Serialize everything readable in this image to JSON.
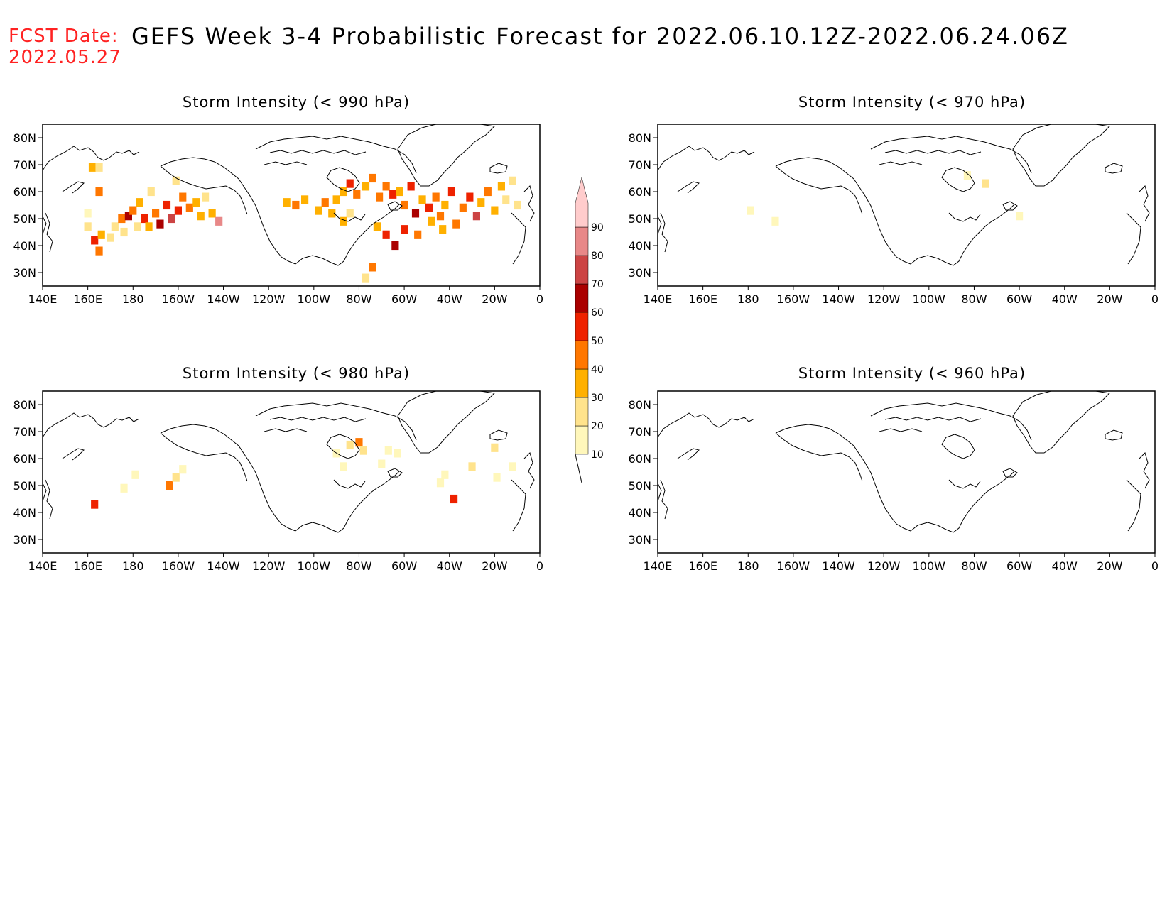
{
  "header": {
    "fcst_label": "FCST Date:",
    "fcst_date": "2022.05.27",
    "title": "GEFS Week 3-4 Probabilistic Forecast for 2022.06.10.12Z-2022.06.24.06Z"
  },
  "panels": [
    {
      "id": "p990",
      "title": "Storm Intensity (< 990 hPa)"
    },
    {
      "id": "p970",
      "title": "Storm Intensity (< 970 hPa)"
    },
    {
      "id": "p980",
      "title": "Storm Intensity (< 980 hPa)"
    },
    {
      "id": "p960",
      "title": "Storm Intensity (< 960 hPa)"
    }
  ],
  "map_axes": {
    "lon_labels": [
      "140E",
      "160E",
      "180",
      "160W",
      "140W",
      "120W",
      "100W",
      "80W",
      "60W",
      "40W",
      "20W",
      "0"
    ],
    "lon_values": [
      140,
      160,
      180,
      200,
      220,
      240,
      260,
      280,
      300,
      320,
      340,
      360
    ],
    "lat_labels": [
      "80N",
      "70N",
      "60N",
      "50N",
      "40N",
      "30N"
    ],
    "lat_values": [
      80,
      70,
      60,
      50,
      40,
      30
    ],
    "lon_range": [
      140,
      360
    ],
    "lat_range": [
      25,
      85
    ]
  },
  "colorbar": {
    "labels": [
      "10",
      "20",
      "30",
      "40",
      "50",
      "60",
      "70",
      "80",
      "90"
    ],
    "colors": [
      "#fff7bb",
      "#ffe38c",
      "#ffb000",
      "#ff7700",
      "#ee2200",
      "#aa0000",
      "#cc4444",
      "#e88888",
      "#ffcccc"
    ]
  },
  "chart_data": {
    "type": "heatmap",
    "units": "probability (%)",
    "panels": [
      {
        "id": "p990",
        "threshold_hpa": 990,
        "cells": [
          [
            165,
            60,
            40
          ],
          [
            162,
            69,
            30
          ],
          [
            165,
            69,
            20
          ],
          [
            160,
            47,
            20
          ],
          [
            160,
            52,
            15
          ],
          [
            163,
            42,
            50
          ],
          [
            165,
            38,
            40
          ],
          [
            166,
            44,
            30
          ],
          [
            172,
            47,
            20
          ],
          [
            175,
            50,
            40
          ],
          [
            178,
            51,
            60
          ],
          [
            180,
            53,
            40
          ],
          [
            183,
            56,
            30
          ],
          [
            185,
            50,
            50
          ],
          [
            187,
            47,
            30
          ],
          [
            190,
            52,
            40
          ],
          [
            192,
            48,
            60
          ],
          [
            195,
            55,
            50
          ],
          [
            197,
            50,
            70
          ],
          [
            200,
            53,
            50
          ],
          [
            202,
            58,
            40
          ],
          [
            205,
            54,
            40
          ],
          [
            208,
            56,
            30
          ],
          [
            210,
            51,
            30
          ],
          [
            215,
            52,
            30
          ],
          [
            218,
            49,
            80
          ],
          [
            212,
            58,
            20
          ],
          [
            199,
            64,
            20
          ],
          [
            188,
            60,
            20
          ],
          [
            176,
            45,
            20
          ],
          [
            170,
            43,
            20
          ],
          [
            182,
            47,
            20
          ],
          [
            248,
            56,
            30
          ],
          [
            252,
            55,
            40
          ],
          [
            256,
            57,
            30
          ],
          [
            262,
            53,
            30
          ],
          [
            265,
            56,
            40
          ],
          [
            270,
            57,
            30
          ],
          [
            268,
            52,
            30
          ],
          [
            273,
            60,
            30
          ],
          [
            276,
            63,
            50
          ],
          [
            279,
            59,
            40
          ],
          [
            283,
            62,
            30
          ],
          [
            286,
            65,
            40
          ],
          [
            289,
            58,
            40
          ],
          [
            292,
            62,
            40
          ],
          [
            295,
            59,
            50
          ],
          [
            298,
            60,
            30
          ],
          [
            300,
            55,
            40
          ],
          [
            303,
            62,
            50
          ],
          [
            305,
            52,
            60
          ],
          [
            308,
            57,
            30
          ],
          [
            311,
            54,
            50
          ],
          [
            314,
            58,
            40
          ],
          [
            316,
            51,
            40
          ],
          [
            318,
            55,
            30
          ],
          [
            321,
            60,
            50
          ],
          [
            323,
            48,
            40
          ],
          [
            326,
            54,
            40
          ],
          [
            329,
            58,
            50
          ],
          [
            332,
            51,
            70
          ],
          [
            334,
            56,
            30
          ],
          [
            337,
            60,
            40
          ],
          [
            340,
            53,
            30
          ],
          [
            343,
            62,
            30
          ],
          [
            345,
            57,
            20
          ],
          [
            348,
            64,
            20
          ],
          [
            350,
            55,
            20
          ],
          [
            288,
            47,
            30
          ],
          [
            292,
            44,
            50
          ],
          [
            296,
            40,
            60
          ],
          [
            300,
            46,
            50
          ],
          [
            306,
            44,
            40
          ],
          [
            286,
            32,
            40
          ],
          [
            283,
            28,
            20
          ],
          [
            276,
            52,
            20
          ],
          [
            273,
            49,
            30
          ],
          [
            312,
            49,
            30
          ],
          [
            317,
            46,
            30
          ]
        ]
      },
      {
        "id": "p970",
        "threshold_hpa": 970,
        "cells": [
          [
            181,
            53,
            10
          ],
          [
            192,
            49,
            10
          ],
          [
            277,
            66,
            10
          ],
          [
            285,
            63,
            20
          ],
          [
            300,
            51,
            10
          ]
        ]
      },
      {
        "id": "p980",
        "threshold_hpa": 980,
        "cells": [
          [
            163,
            43,
            50
          ],
          [
            181,
            54,
            10
          ],
          [
            176,
            49,
            10
          ],
          [
            196,
            50,
            40
          ],
          [
            199,
            53,
            20
          ],
          [
            202,
            56,
            10
          ],
          [
            270,
            62,
            10
          ],
          [
            273,
            57,
            10
          ],
          [
            276,
            65,
            20
          ],
          [
            280,
            66,
            40
          ],
          [
            282,
            63,
            20
          ],
          [
            293,
            63,
            10
          ],
          [
            297,
            62,
            10
          ],
          [
            290,
            58,
            10
          ],
          [
            316,
            51,
            10
          ],
          [
            318,
            54,
            10
          ],
          [
            322,
            45,
            50
          ],
          [
            330,
            57,
            20
          ],
          [
            340,
            64,
            20
          ],
          [
            341,
            53,
            10
          ],
          [
            348,
            57,
            10
          ]
        ]
      },
      {
        "id": "p960",
        "threshold_hpa": 960,
        "cells": []
      }
    ]
  }
}
